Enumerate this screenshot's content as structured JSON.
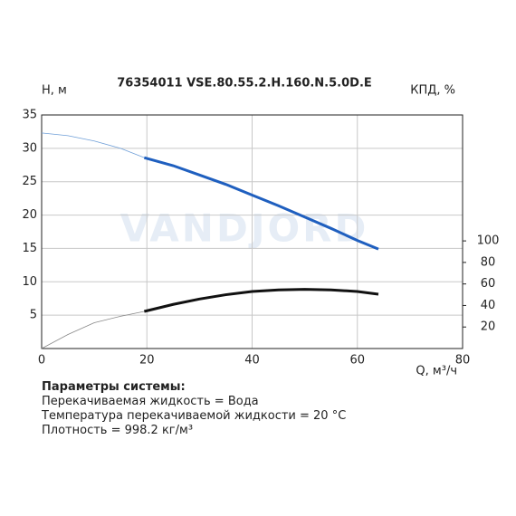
{
  "chart_data": {
    "type": "line",
    "title": "76354011 VSE.80.55.2.H.160.N.5.0D.E",
    "ylabel": "H, м",
    "y2label": "КПД, %",
    "xlabel": "Q, м³/ч",
    "watermark": "VANDJORD",
    "xlim": [
      0,
      80
    ],
    "xticks": [
      0,
      20,
      40,
      60,
      80
    ],
    "ylim": [
      0,
      35
    ],
    "yticks": [
      5,
      10,
      15,
      20,
      25,
      30,
      35
    ],
    "y2lim": [
      0,
      217
    ],
    "y2ticks": [
      20,
      40,
      60,
      80,
      100
    ],
    "grid": true,
    "series": [
      {
        "color": "#6f9fd8",
        "width": 0.8,
        "x": [
          0,
          5,
          10,
          15,
          19.5
        ],
        "values": [
          32.3,
          31.9,
          31.1,
          30.0,
          28.6
        ]
      },
      {
        "color": "#1f5fbf",
        "width": 3,
        "x": [
          19.5,
          25,
          30,
          35,
          40,
          45,
          50,
          55,
          60,
          64
        ],
        "values": [
          28.6,
          27.4,
          26.0,
          24.6,
          23.0,
          21.4,
          19.7,
          18.0,
          16.2,
          14.9
        ]
      },
      {
        "color": "#888888",
        "width": 0.8,
        "axis": "y2",
        "x": [
          0,
          5,
          10,
          15,
          19.5
        ],
        "values": [
          0,
          13,
          24,
          30,
          34.5
        ]
      },
      {
        "color": "#111111",
        "width": 3,
        "axis": "y2",
        "x": [
          19.5,
          25,
          30,
          35,
          40,
          45,
          50,
          55,
          60,
          64
        ],
        "values": [
          34.5,
          41,
          46,
          50,
          53,
          54.5,
          55,
          54.5,
          53,
          50.5
        ]
      }
    ]
  },
  "parameters": {
    "title": "Параметры системы:",
    "lines": [
      "Перекачиваемая жидкость = Вода",
      "Температура перекачиваемой жидкости = 20 °C",
      "Плотность = 998.2 кг/м³"
    ]
  }
}
